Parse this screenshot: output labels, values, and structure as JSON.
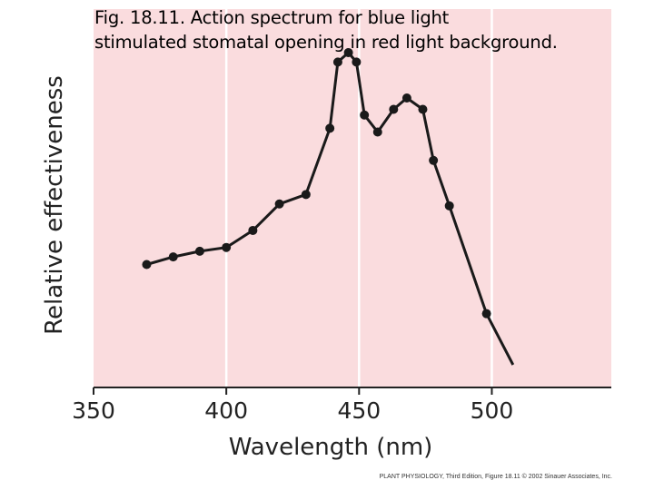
{
  "caption": {
    "line1": "Fig. 18.11.  Action spectrum for blue light",
    "line2": "stimulated stomatal opening in red light background."
  },
  "credit": "PLANT PHYSIOLOGY, Third Edition, Figure 18.11  © 2002 Sinauer Associates, Inc.",
  "colors": {
    "plot_background": "#fadcde",
    "gridline": "#ffffff",
    "series": "#1a1a1a"
  },
  "chart_data": {
    "type": "line",
    "title": "Action spectrum for blue light stimulated stomatal opening in red light background",
    "xlabel": "Wavelength (nm)",
    "ylabel": "Relative effectiveness",
    "xlim": [
      350,
      545
    ],
    "ylim": [
      0,
      100
    ],
    "xticks": [
      350,
      400,
      450,
      500
    ],
    "grid": true,
    "series": [
      {
        "name": "Relative effectiveness",
        "x": [
          370,
          380,
          390,
          400,
          410,
          420,
          430,
          439,
          442,
          446,
          449,
          452,
          457,
          463,
          468,
          474,
          478,
          484,
          498
        ],
        "y": [
          32.5,
          34.5,
          36,
          37,
          41.5,
          48.5,
          51,
          68.5,
          86,
          88.5,
          86,
          72,
          67.5,
          73.5,
          76.5,
          73.5,
          60,
          48,
          19.5
        ]
      }
    ],
    "trend_tail": {
      "x": 508,
      "y": 6
    }
  }
}
